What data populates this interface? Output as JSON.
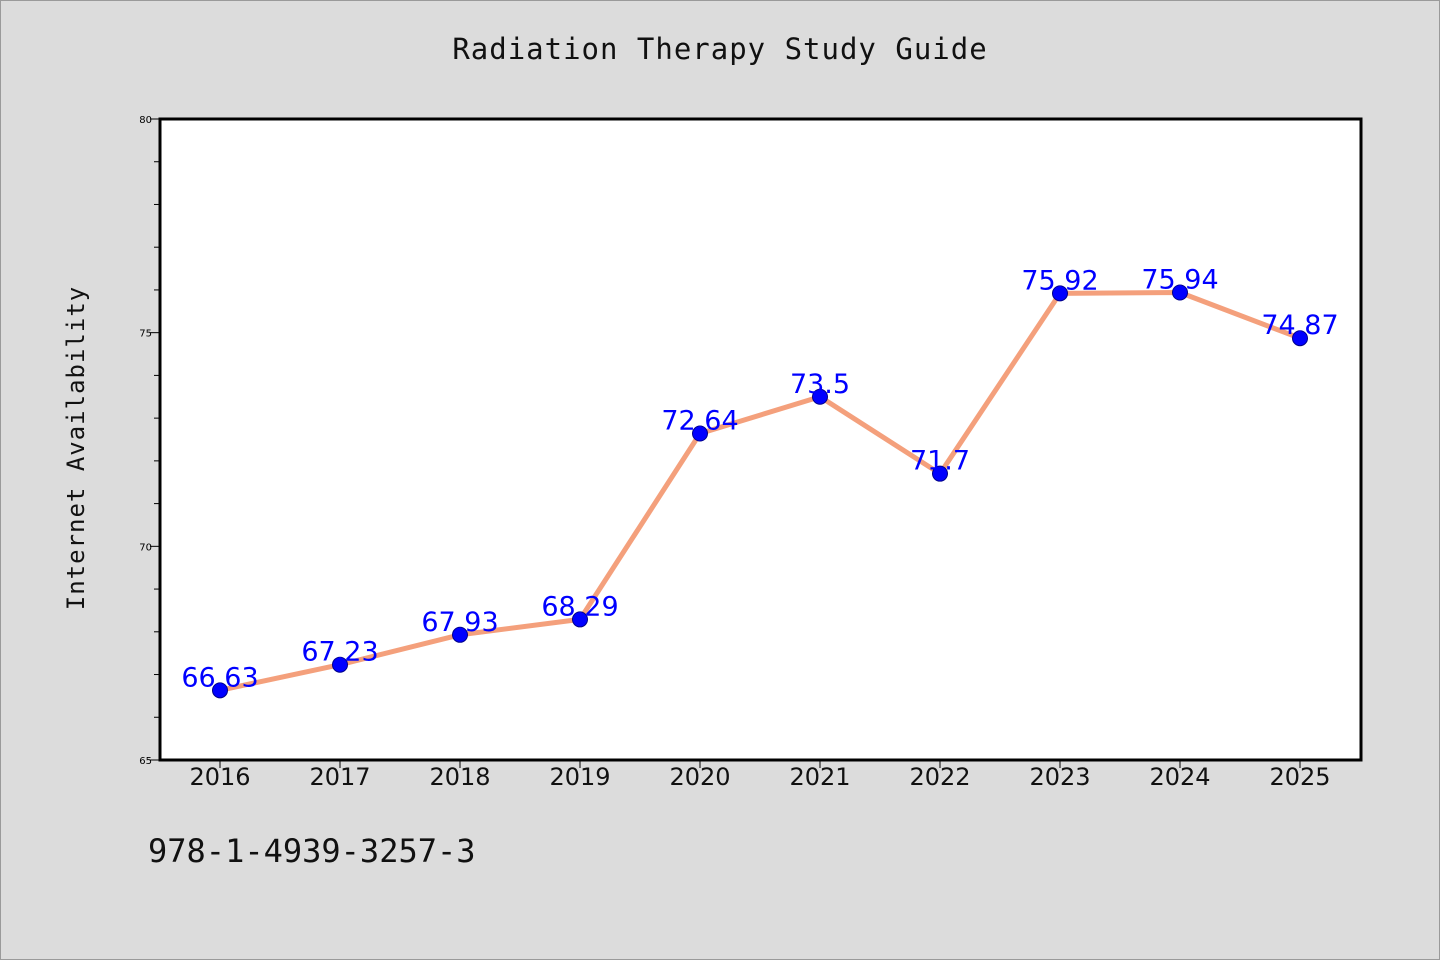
{
  "chart_data": {
    "type": "line",
    "title": "Radiation Therapy Study Guide",
    "xlabel": "",
    "ylabel": "Internet Availability",
    "categories": [
      "2016",
      "2017",
      "2018",
      "2019",
      "2020",
      "2021",
      "2022",
      "2023",
      "2024",
      "2025"
    ],
    "series": [
      {
        "values": [
          66.63,
          67.23,
          67.93,
          68.29,
          72.64,
          73.5,
          71.7,
          75.92,
          75.94,
          74.87
        ],
        "labels": [
          "66.63",
          "67.23",
          "67.93",
          "68.29",
          "72.64",
          "73.5",
          "71.7",
          "75.92",
          "75.94",
          "74.87"
        ]
      }
    ],
    "ylim": [
      65,
      80
    ],
    "yticks": [
      "65",
      "70",
      "75",
      "80"
    ],
    "grid": false,
    "colors": {
      "line": "#f4a07c",
      "marker": "#0000ff",
      "label": "#0000ff",
      "plot_bg": "#ffffff",
      "page_bg": "#dcdcdc"
    }
  },
  "footer": {
    "isbn": "978-1-4939-3257-3"
  }
}
